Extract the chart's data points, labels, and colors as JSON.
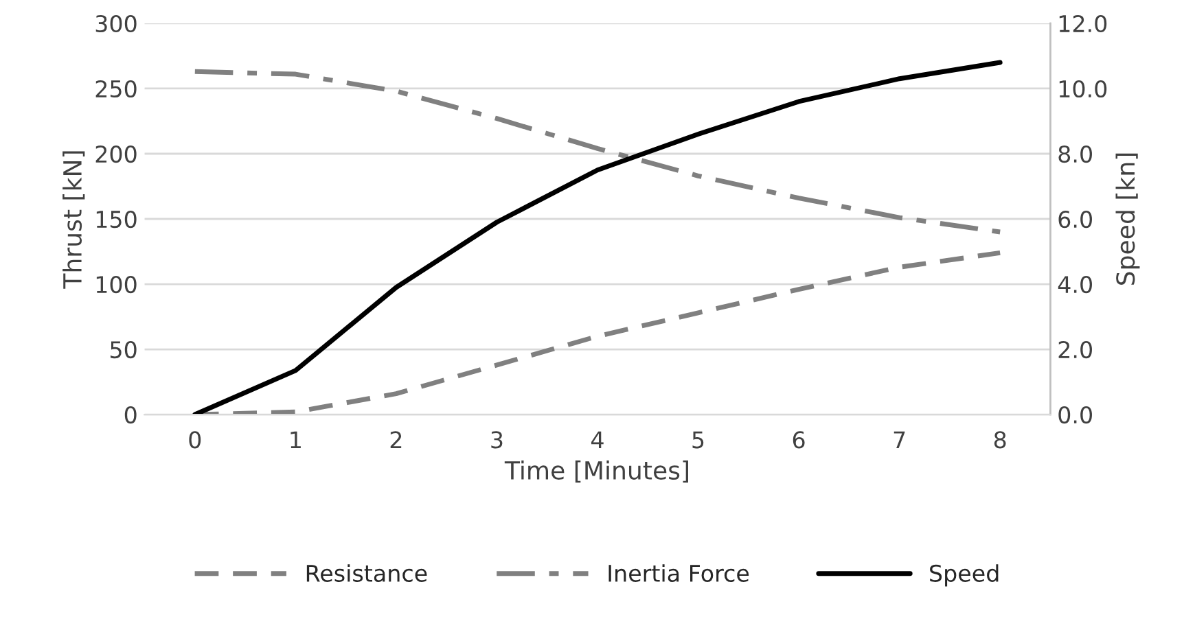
{
  "chart_data": {
    "type": "line",
    "xlabel": "Time [Minutes]",
    "ylabel": "Thrust [kN]",
    "y2label": "Speed [kn]",
    "categories": [
      "0",
      "1",
      "2",
      "3",
      "4",
      "5",
      "6",
      "7",
      "8"
    ],
    "series": [
      {
        "name": "Resistance",
        "color": "#808080",
        "line_style": "dashed",
        "values": [
          0,
          2,
          16,
          38,
          60,
          78,
          96,
          113,
          124
        ]
      },
      {
        "name": "Inertia Force",
        "color": "#808080",
        "line_style": "dashdot",
        "values": [
          263,
          261,
          248,
          227,
          204,
          183,
          166,
          151,
          140
        ]
      },
      {
        "name": "Speed",
        "color": "#000000",
        "line_style": "solid",
        "axis": "y2",
        "values": [
          0,
          1.35,
          3.9,
          5.9,
          7.5,
          8.6,
          9.6,
          10.3,
          10.8
        ]
      }
    ],
    "ylim": [
      0,
      300
    ],
    "yticks": [
      0,
      50,
      100,
      150,
      200,
      250,
      300
    ],
    "y2lim": [
      0,
      12
    ],
    "y2ticks": [
      {
        "value": 0,
        "label": "0.0"
      },
      {
        "value": 2,
        "label": "2.0"
      },
      {
        "value": 4,
        "label": "4.0"
      },
      {
        "value": 6,
        "label": "6.0"
      },
      {
        "value": 8,
        "label": "8.0"
      },
      {
        "value": 10,
        "label": "10.0"
      },
      {
        "value": 12,
        "label": "12.0"
      }
    ],
    "grid": "y",
    "legend": "bottom",
    "marker": "none"
  }
}
